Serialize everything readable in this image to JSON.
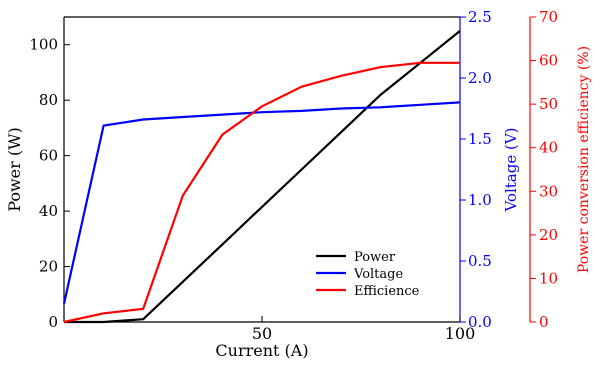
{
  "chart_data": {
    "type": "line",
    "x_axis": {
      "label": "Current (A)",
      "range": [
        0,
        100
      ],
      "ticks": [
        0,
        50,
        100
      ],
      "tick_labels_shown": [
        "50",
        "100"
      ]
    },
    "left_axis": {
      "label": "Power (W)",
      "range": [
        0,
        110
      ],
      "ticks": [
        0,
        20,
        40,
        60,
        80,
        100
      ],
      "color": "#000000"
    },
    "right_axis_1": {
      "label": "Voltage (V)",
      "range": [
        0,
        2.5
      ],
      "ticks": [
        0.0,
        0.5,
        1.0,
        1.5,
        2.0,
        2.5
      ],
      "tick_labels": [
        "0.0",
        "0.5",
        "1.0",
        "1.5",
        "2.0",
        "2.5"
      ],
      "color": "#0000ff"
    },
    "right_axis_2": {
      "label": "Power conversion efficiency (%)",
      "range": [
        0,
        70
      ],
      "ticks": [
        0,
        10,
        20,
        30,
        40,
        50,
        60,
        70
      ],
      "color": "#ff0000"
    },
    "grid": false,
    "legend_position": "bottom-right",
    "series": [
      {
        "name": "Power",
        "axis": "left_axis",
        "color": "#000000",
        "x": [
          0,
          10,
          20,
          30,
          40,
          50,
          60,
          70,
          80,
          90,
          100
        ],
        "y": [
          0,
          0,
          1,
          14.5,
          28,
          41.5,
          55,
          68.5,
          82,
          93.5,
          105
        ]
      },
      {
        "name": "Voltage",
        "axis": "right_axis_1",
        "color": "#0000ff",
        "x": [
          0,
          10,
          20,
          30,
          40,
          50,
          60,
          70,
          80,
          90,
          100
        ],
        "y": [
          0.15,
          1.61,
          1.66,
          1.68,
          1.7,
          1.72,
          1.73,
          1.75,
          1.76,
          1.78,
          1.8
        ]
      },
      {
        "name": "Efficience",
        "axis": "right_axis_2",
        "color": "#ff0000",
        "x": [
          0,
          10,
          20,
          30,
          40,
          50,
          60,
          70,
          80,
          90,
          100
        ],
        "y": [
          0,
          2,
          3,
          29,
          43,
          49.5,
          54,
          56.5,
          58.5,
          59.5,
          59.5
        ]
      }
    ]
  }
}
